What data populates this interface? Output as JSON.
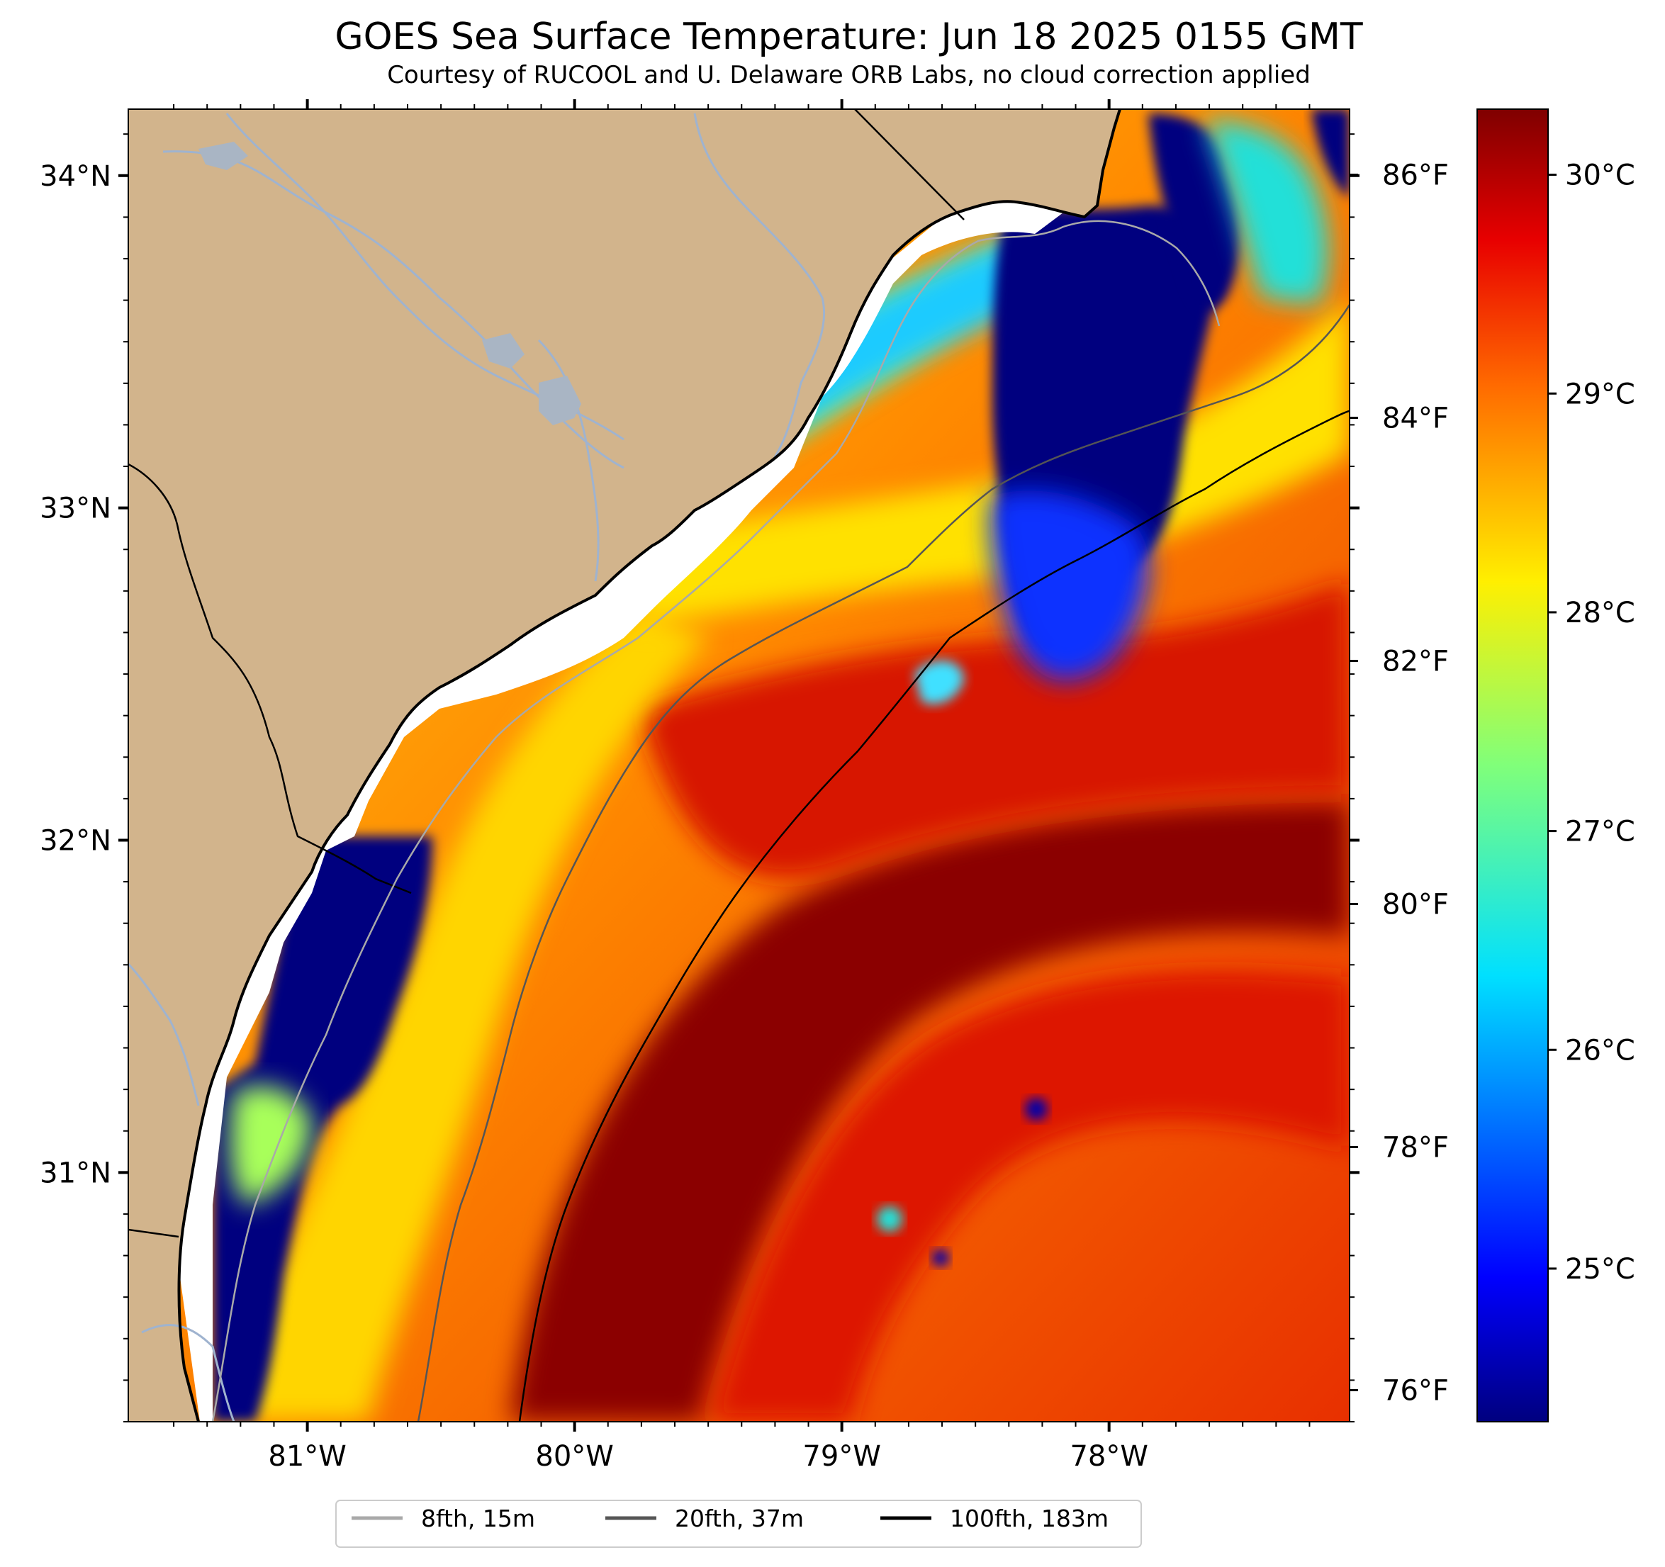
{
  "title": "GOES Sea Surface Temperature: Jun 18 2025 0155 GMT",
  "subtitle": "Courtesy of RUCOOL and U. Delaware ORB Labs, no cloud correction applied",
  "map": {
    "lon_range": [
      -81.67,
      -77.1
    ],
    "lat_range": [
      30.25,
      34.2
    ],
    "land_color": "#d2b48c",
    "no_data_color": "#ffffff",
    "lon_ticks": [
      {
        "value": -81,
        "label": "81°W"
      },
      {
        "value": -80,
        "label": "80°W"
      },
      {
        "value": -79,
        "label": "79°W"
      },
      {
        "value": -78,
        "label": "78°W"
      }
    ],
    "lat_ticks": [
      {
        "value": 34,
        "label": "34°N"
      },
      {
        "value": 33,
        "label": "33°N"
      },
      {
        "value": 32,
        "label": "32°N"
      },
      {
        "value": 31,
        "label": "31°N"
      }
    ],
    "fahrenheit_ticks": [
      {
        "label": "86°F"
      },
      {
        "label": "84°F"
      },
      {
        "label": "82°F"
      },
      {
        "label": "80°F"
      },
      {
        "label": "78°F"
      },
      {
        "label": "76°F"
      }
    ]
  },
  "colorbar": {
    "colormap": "jet",
    "ticks": [
      {
        "value": 30,
        "label": "30°C"
      },
      {
        "value": 29,
        "label": "29°C"
      },
      {
        "value": 28,
        "label": "28°C"
      },
      {
        "value": 27,
        "label": "27°C"
      },
      {
        "value": 26,
        "label": "26°C"
      },
      {
        "value": 25,
        "label": "25°C"
      }
    ]
  },
  "legend": {
    "items": [
      {
        "label": "8fth, 15m",
        "color": "#a9a9a9"
      },
      {
        "label": "20fth, 37m",
        "color": "#555555"
      },
      {
        "label": "100fth, 183m",
        "color": "#000000"
      }
    ]
  }
}
